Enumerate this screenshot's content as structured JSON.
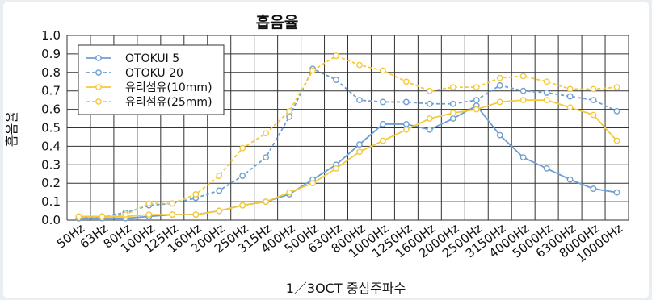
{
  "chart_data": {
    "type": "line",
    "title": "흡음율",
    "xlabel": "1／3OCT 중심주파수",
    "ylabel": "흡음율",
    "categories": [
      "50Hz",
      "63Hz",
      "80Hz",
      "100Hz",
      "125Hz",
      "160Hz",
      "200Hz",
      "250Hz",
      "315Hz",
      "400Hz",
      "500Hz",
      "630Hz",
      "800Hz",
      "1000Hz",
      "1250Hz",
      "1600Hz",
      "2000Hz",
      "2500Hz",
      "3150Hz",
      "4000Hz",
      "5000Hz",
      "6300Hz",
      "8000Hz",
      "10000Hz"
    ],
    "ylim": [
      0,
      1.0
    ],
    "yticks": [
      "0.0",
      "0.1",
      "0.2",
      "0.3",
      "0.4",
      "0.5",
      "0.6",
      "0.7",
      "0.8",
      "0.9",
      "1.0"
    ],
    "grid": true,
    "legend_position": "top-left",
    "series": [
      {
        "name": "OTOKUI 5",
        "style": "solid",
        "color": "#6f9fd0",
        "values": [
          0.01,
          0.01,
          0.01,
          0.02,
          0.03,
          0.03,
          0.05,
          0.08,
          0.1,
          0.14,
          0.22,
          0.3,
          0.41,
          0.52,
          0.52,
          0.49,
          0.55,
          0.62,
          0.46,
          0.34,
          0.28,
          0.22,
          0.17,
          0.15
        ]
      },
      {
        "name": "OTOKU 20",
        "style": "dashed",
        "color": "#6f9fd0",
        "values": [
          0.01,
          0.02,
          0.04,
          0.08,
          0.09,
          0.12,
          0.16,
          0.24,
          0.34,
          0.56,
          0.82,
          0.76,
          0.65,
          0.64,
          0.64,
          0.63,
          0.63,
          0.65,
          0.73,
          0.7,
          0.69,
          0.67,
          0.65,
          0.59
        ]
      },
      {
        "name": "유리섬유(10mm)",
        "style": "solid",
        "color": "#f5c93a",
        "values": [
          0.02,
          0.02,
          0.02,
          0.03,
          0.03,
          0.03,
          0.05,
          0.08,
          0.1,
          0.15,
          0.2,
          0.28,
          0.37,
          0.43,
          0.49,
          0.55,
          0.58,
          0.6,
          0.64,
          0.65,
          0.65,
          0.61,
          0.57,
          0.43
        ]
      },
      {
        "name": "유리섬유(25mm)",
        "style": "dashed",
        "color": "#f5c93a",
        "values": [
          0.02,
          0.02,
          0.03,
          0.09,
          0.09,
          0.14,
          0.24,
          0.39,
          0.47,
          0.59,
          0.81,
          0.89,
          0.84,
          0.81,
          0.75,
          0.7,
          0.72,
          0.72,
          0.77,
          0.78,
          0.75,
          0.71,
          0.71,
          0.72
        ]
      }
    ]
  }
}
